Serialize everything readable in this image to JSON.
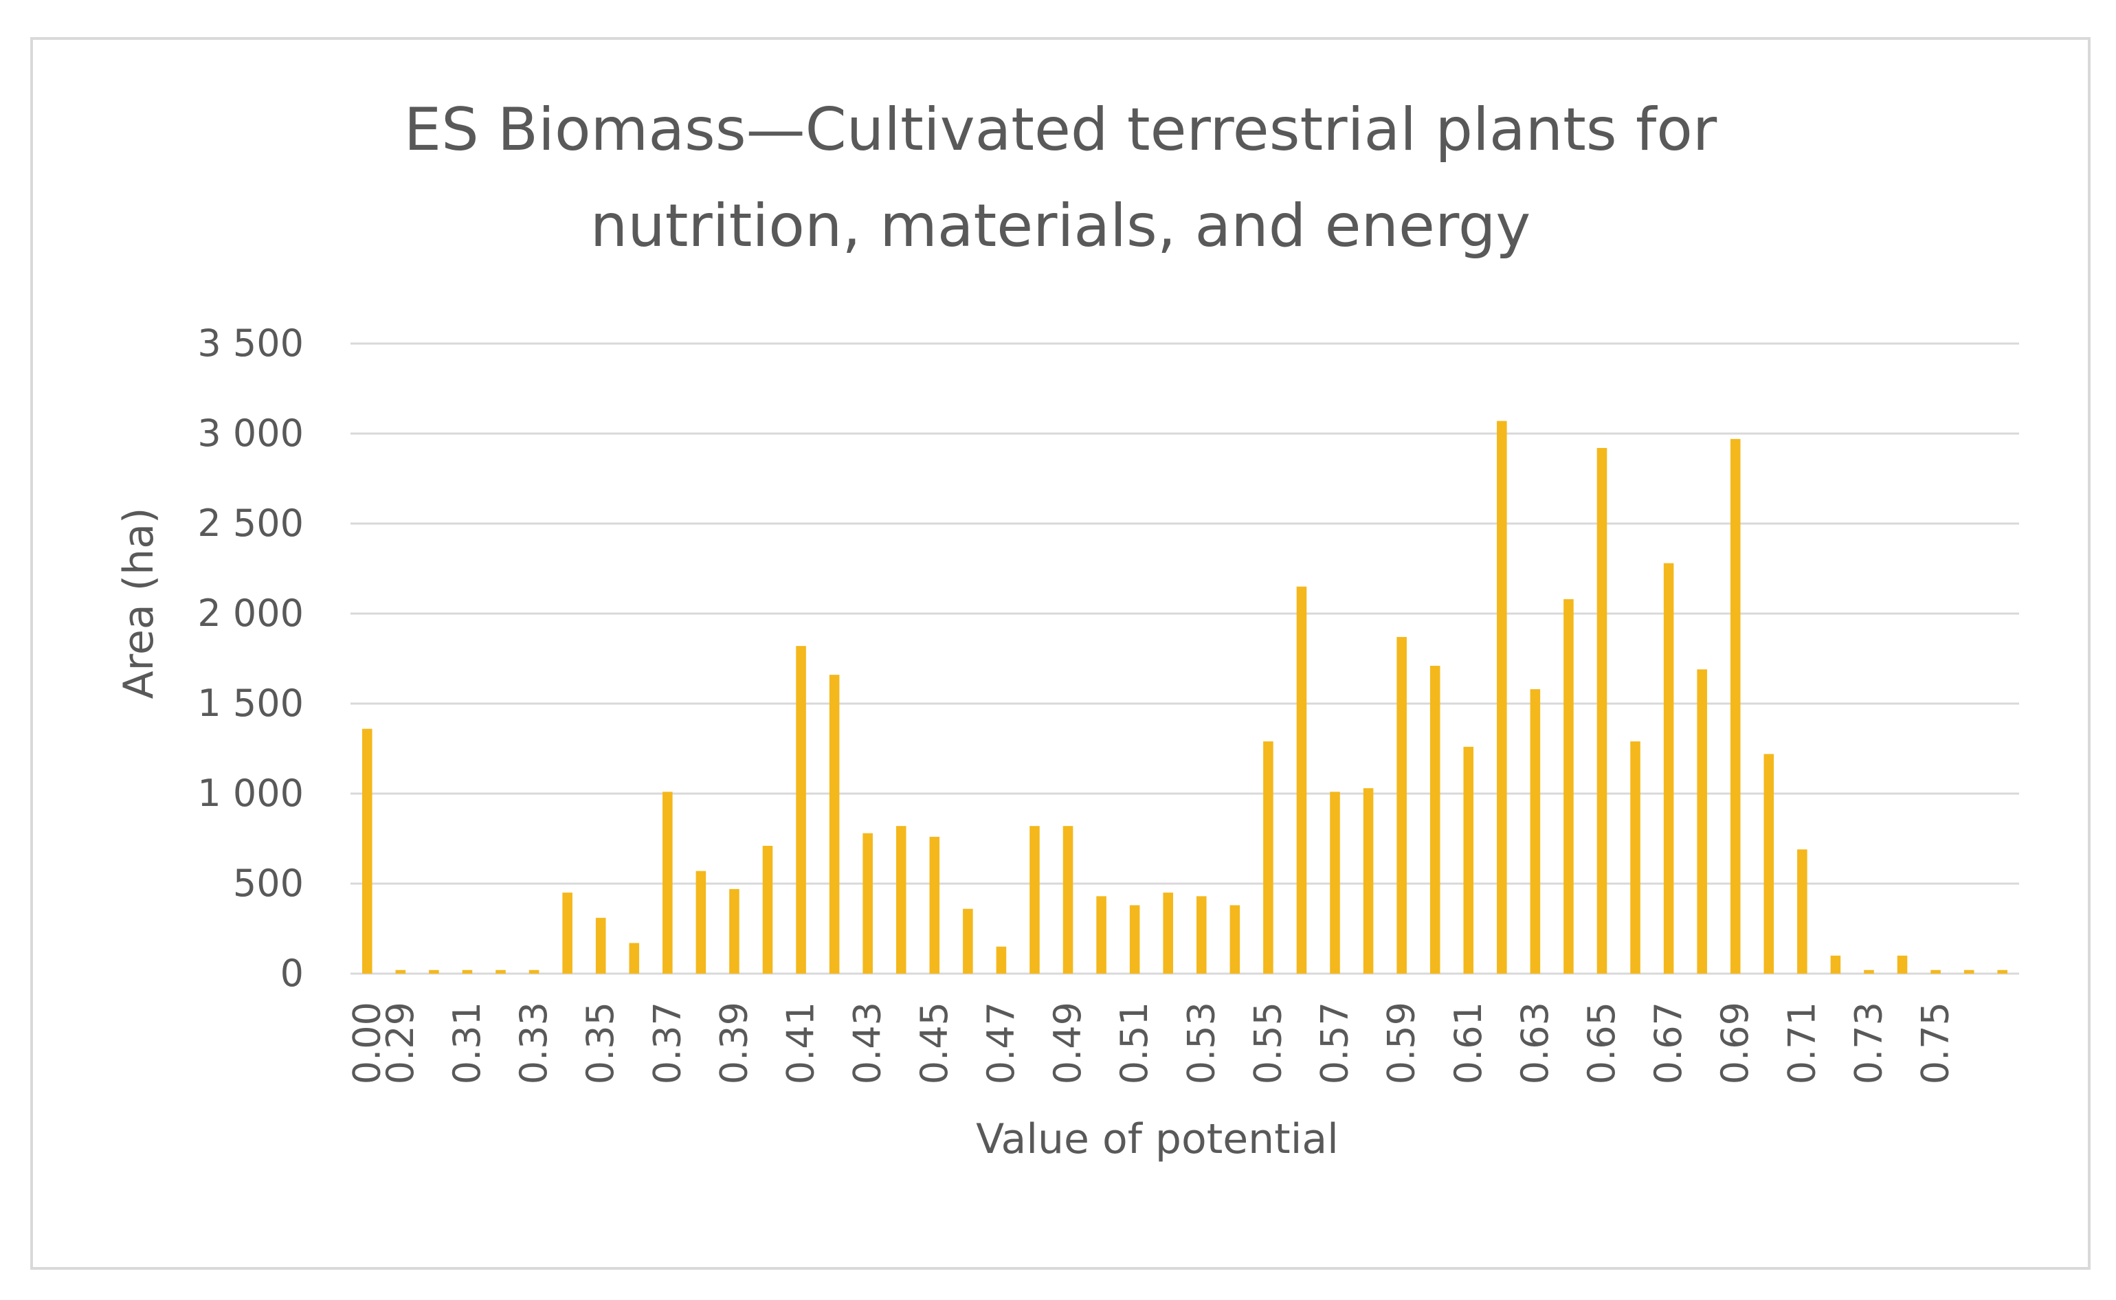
{
  "chart_data": {
    "type": "bar",
    "title_lines": [
      "ES Biomass—Cultivated terrestrial plants for",
      "nutrition, materials, and energy"
    ],
    "xlabel": "Value of potential",
    "ylabel": "Area (ha)",
    "ylim": [
      0,
      3500
    ],
    "yticks": [
      0,
      500,
      1000,
      1500,
      2000,
      2500,
      3000,
      3500
    ],
    "ytick_labels": [
      "0",
      "500",
      "1 000",
      "1 500",
      "2 000",
      "2 500",
      "3 000",
      "3 500"
    ],
    "grid": true,
    "legend": "none",
    "bar_color": "#f4b81c",
    "categories": [
      "0.00",
      "0.29",
      "0.30",
      "0.31",
      "0.32",
      "0.33",
      "0.34",
      "0.35",
      "0.36",
      "0.37",
      "0.38",
      "0.39",
      "0.40",
      "0.41",
      "0.42",
      "0.43",
      "0.44",
      "0.45",
      "0.46",
      "0.47",
      "0.48",
      "0.49",
      "0.50",
      "0.51",
      "0.52",
      "0.53",
      "0.54",
      "0.55",
      "0.56",
      "0.57",
      "0.58",
      "0.59",
      "0.60",
      "0.61",
      "0.62",
      "0.63",
      "0.64",
      "0.65",
      "0.66",
      "0.67",
      "0.68",
      "0.69",
      "0.70",
      "0.71",
      "0.72",
      "0.73",
      "0.74",
      "0.75",
      "0.76",
      "0.77"
    ],
    "visible_tick_labels": [
      "0.00",
      "0.29",
      "0.31",
      "0.33",
      "0.35",
      "0.37",
      "0.39",
      "0.41",
      "0.43",
      "0.45",
      "0.47",
      "0.49",
      "0.51",
      "0.53",
      "0.55",
      "0.57",
      "0.59",
      "0.61",
      "0.63",
      "0.65",
      "0.67",
      "0.69",
      "0.71",
      "0.73",
      "0.75"
    ],
    "values": [
      1360,
      20,
      20,
      20,
      20,
      20,
      450,
      310,
      170,
      1010,
      570,
      470,
      710,
      1820,
      1660,
      780,
      820,
      760,
      360,
      150,
      820,
      820,
      430,
      380,
      450,
      430,
      380,
      1290,
      2150,
      1010,
      1030,
      1870,
      1710,
      1260,
      3070,
      1580,
      2080,
      2920,
      1290,
      2280,
      1690,
      2970,
      1220,
      690,
      100,
      20,
      100,
      20,
      20,
      20
    ]
  }
}
